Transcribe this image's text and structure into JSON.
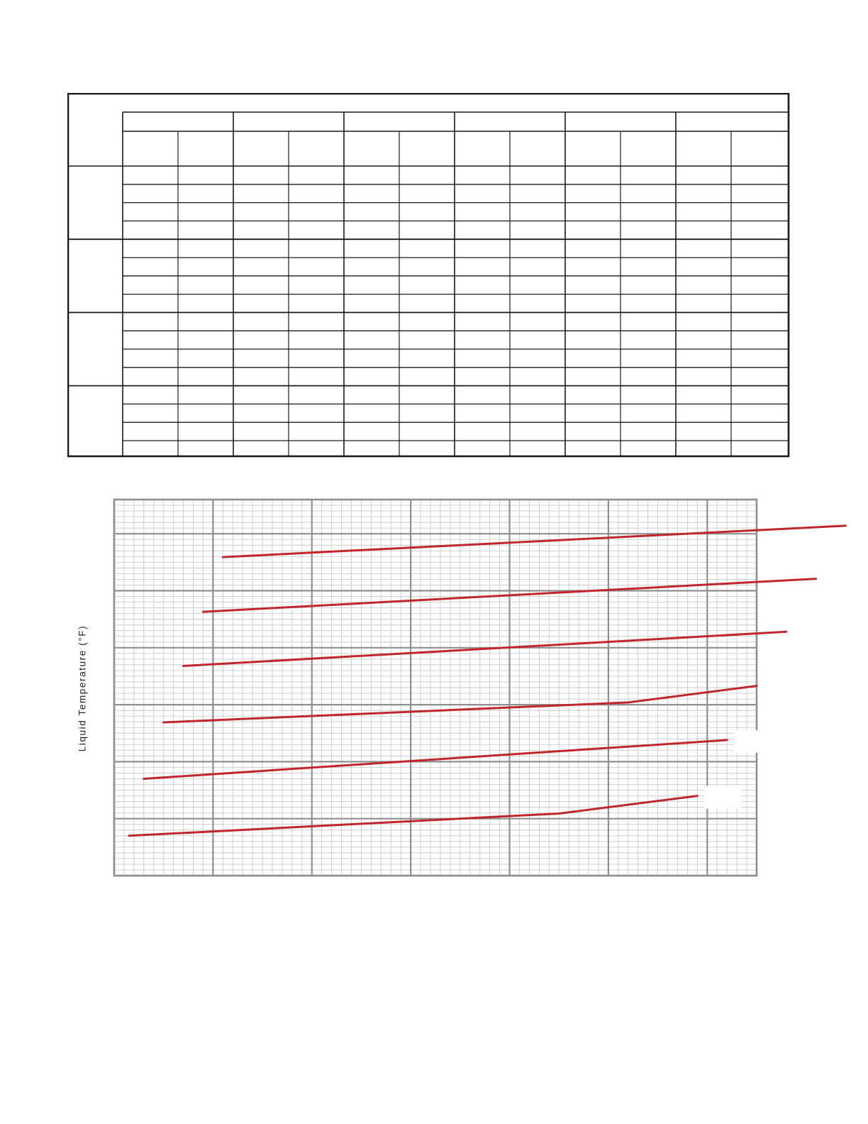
{
  "chart_data": {
    "type": "line",
    "title": "",
    "xlabel": "",
    "ylabel": "Liquid Temperature (°F)",
    "grid": true,
    "legend": "none",
    "series": [
      {
        "x": [
          1.1,
          7.4
        ],
        "y": [
          5.59,
          6.14
        ]
      },
      {
        "x": [
          0.9,
          7.1
        ],
        "y": [
          4.63,
          5.21
        ]
      },
      {
        "x": [
          0.7,
          6.8
        ],
        "y": [
          3.68,
          4.28
        ]
      },
      {
        "x": [
          0.5,
          5.2,
          6.5
        ],
        "y": [
          2.69,
          3.04,
          3.33
        ]
      },
      {
        "x": [
          0.3,
          6.2
        ],
        "y": [
          1.7,
          2.38
        ]
      },
      {
        "x": [
          0.15,
          4.5,
          5.9
        ],
        "y": [
          0.7,
          1.09,
          1.4
        ]
      }
    ],
    "line_color": "#c1262d"
  }
}
